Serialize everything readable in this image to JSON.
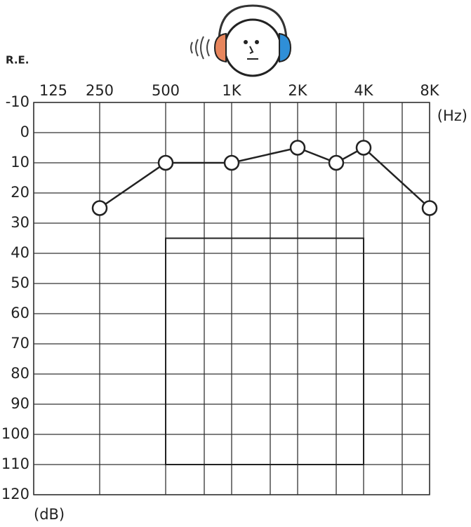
{
  "chart_data": {
    "type": "line",
    "ear_label": "R.E.",
    "x_unit": "(Hz)",
    "y_unit": "(dB)",
    "x": [
      250,
      500,
      1000,
      2000,
      3000,
      4000,
      8000
    ],
    "series": [
      {
        "color": "#222222",
        "values": [
          25,
          10,
          10,
          5,
          10,
          5,
          25
        ]
      }
    ],
    "log_x": true,
    "xlim": [
      125,
      8000
    ],
    "xticks": [
      125,
      250,
      500,
      {
        "value": 1000,
        "label": "1K"
      },
      {
        "value": 2000,
        "label": "2K"
      },
      {
        "value": 4000,
        "label": "4K"
      },
      {
        "value": 8000,
        "label": "8K"
      }
    ],
    "xminorticks": [
      750,
      1500,
      3000,
      6000
    ],
    "ylim": [
      -10,
      120
    ],
    "invert_y": true,
    "yticks": [
      -10,
      0,
      10,
      20,
      30,
      40,
      50,
      60,
      70,
      80,
      90,
      100,
      110,
      120
    ],
    "region": {
      "xlim": [
        500,
        4000
      ],
      "ylim": [
        35,
        110
      ]
    },
    "grid": true
  }
}
